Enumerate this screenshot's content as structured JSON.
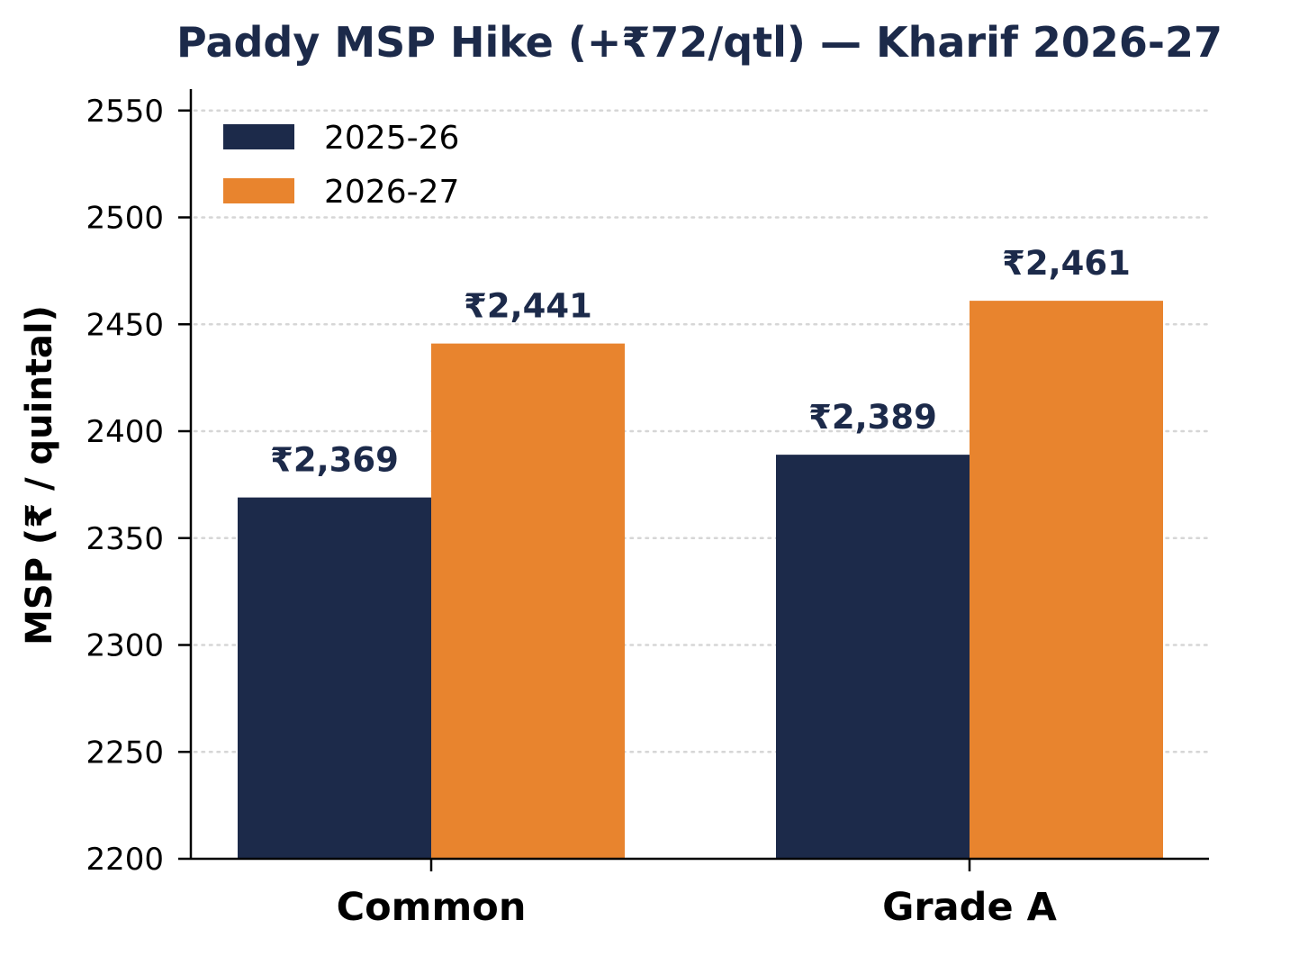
{
  "chart_data": {
    "type": "bar",
    "title": "Paddy MSP Hike (+₹72/qtl) — Kharif 2026-27",
    "xlabel": "",
    "ylabel": "MSP (₹ / quintal)",
    "categories": [
      "Common",
      "Grade A"
    ],
    "series": [
      {
        "name": "2025-26",
        "color": "#1c2a4a",
        "values": [
          2369,
          2389
        ],
        "labels": [
          "₹2,369",
          "₹2,389"
        ]
      },
      {
        "name": "2026-27",
        "color": "#e8842e",
        "values": [
          2441,
          2461
        ],
        "labels": [
          "₹2,441",
          "₹2,461"
        ]
      }
    ],
    "ylim": [
      2200,
      2560
    ],
    "yticks": [
      2200,
      2250,
      2300,
      2350,
      2400,
      2450,
      2500,
      2550
    ],
    "ytick_labels": [
      "2200",
      "2250",
      "2300",
      "2350",
      "2400",
      "2450",
      "2500",
      "2550"
    ],
    "grid": "horizontal, dotted",
    "legend_position": "top-left",
    "title_color": "#1c2a4a",
    "label_color": "#1c2a4a"
  }
}
